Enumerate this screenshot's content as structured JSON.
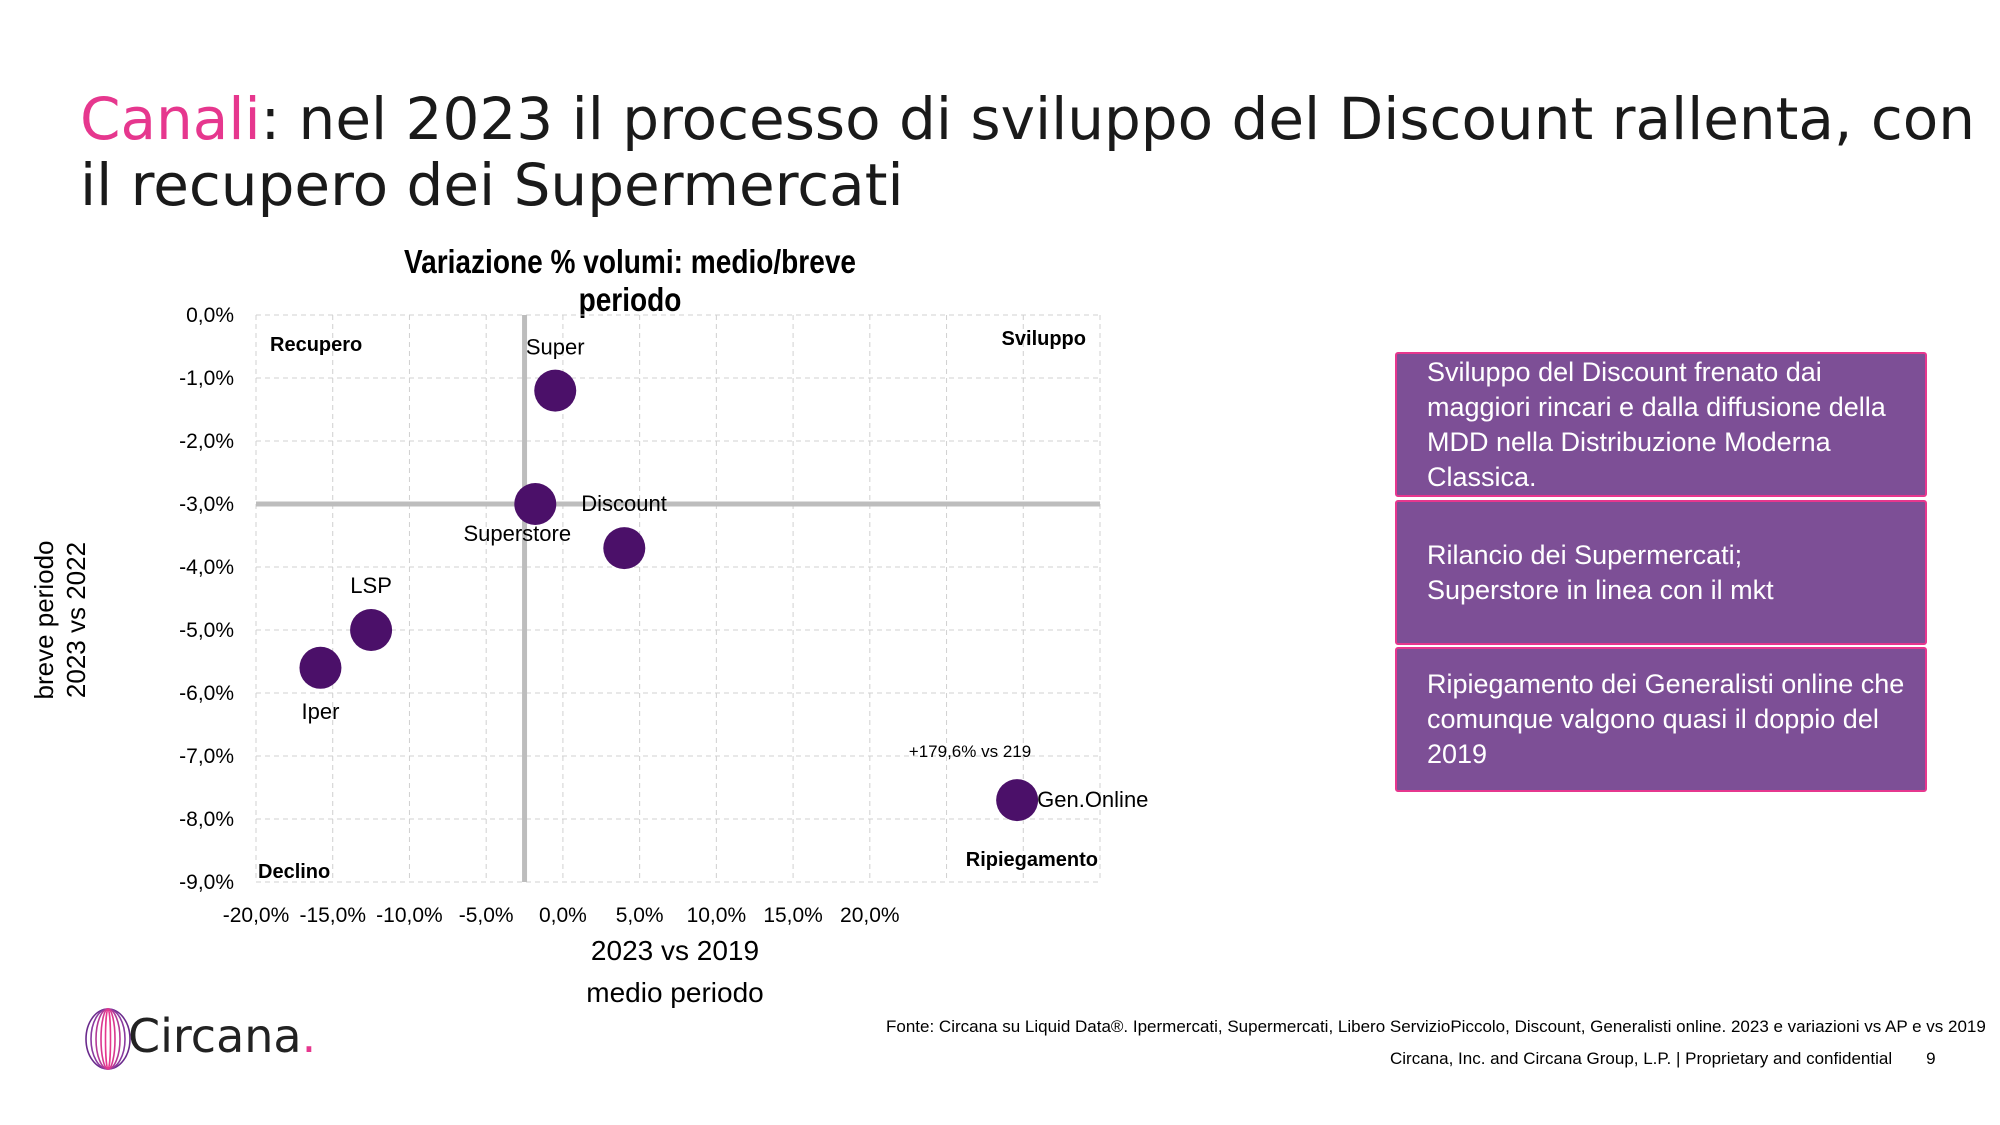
{
  "slide": {
    "title_accent": "Canali",
    "title_rest": ": nel 2023 il processo di sviluppo del Discount rallenta, con il recupero dei Supermercati",
    "page_number": "9"
  },
  "chart_data": {
    "type": "scatter",
    "title": "Variazione % volumi: medio/breve periodo",
    "xlabel_line1": "2023 vs 2019",
    "xlabel_line2": "medio periodo",
    "ylabel_line1": "breve periodo",
    "ylabel_line2": "2023 vs 2022",
    "xlim": [
      -20,
      35
    ],
    "ylim": [
      -9,
      0
    ],
    "x_ticks": [
      "-20,0%",
      "-15,0%",
      "-10,0%",
      "-5,0%",
      "0,0%",
      "5,0%",
      "10,0%",
      "15,0%",
      "20,0%"
    ],
    "y_ticks": [
      "0,0%",
      "-1,0%",
      "-2,0%",
      "-3,0%",
      "-4,0%",
      "-5,0%",
      "-6,0%",
      "-7,0%",
      "-8,0%",
      "-9,0%"
    ],
    "grid": true,
    "reference_lines": {
      "x": -2.5,
      "y": -3.0
    },
    "quadrants": {
      "top_left": "Recupero",
      "top_right": "Sviluppo",
      "bottom_left": "Declino",
      "bottom_right": "Ripiegamento"
    },
    "points": [
      {
        "label": "Super",
        "x": -0.5,
        "y": -1.2
      },
      {
        "label": "Superstore",
        "x": -1.8,
        "y": -3.0
      },
      {
        "label": "Discount",
        "x": 4.0,
        "y": -3.7
      },
      {
        "label": "LSP",
        "x": -12.5,
        "y": -5.0
      },
      {
        "label": "Iper",
        "x": -15.8,
        "y": -5.6
      },
      {
        "label": "Gen.Online",
        "x": 29.6,
        "y": -7.7
      }
    ],
    "annotation": "+179,6% vs 219",
    "point_color": "#4b1069"
  },
  "boxes": [
    {
      "text": "Sviluppo del Discount frenato dai maggiori rincari e dalla diffusione della MDD nella Distribuzione Moderna Classica."
    },
    {
      "text": "Rilancio dei Supermercati;\nSuperstore in linea con il mkt"
    },
    {
      "text": "Ripiegamento dei Generalisti online che comunque valgono quasi il doppio del 2019"
    }
  ],
  "footer": {
    "source": "Fonte: Circana su Liquid Data®.  Ipermercati, Supermercati, Libero ServizioPiccolo, Discount, Generalisti online. 2023 e variazioni vs AP e vs 2019",
    "confidential": "Circana, Inc. and Circana Group, L.P. |  Proprietary and confidential",
    "logo_text": "Circana",
    "logo_dot": "."
  },
  "colors": {
    "accent_pink": "#e6378e",
    "box_purple": "#7d4f96",
    "point_purple": "#4b1069"
  }
}
